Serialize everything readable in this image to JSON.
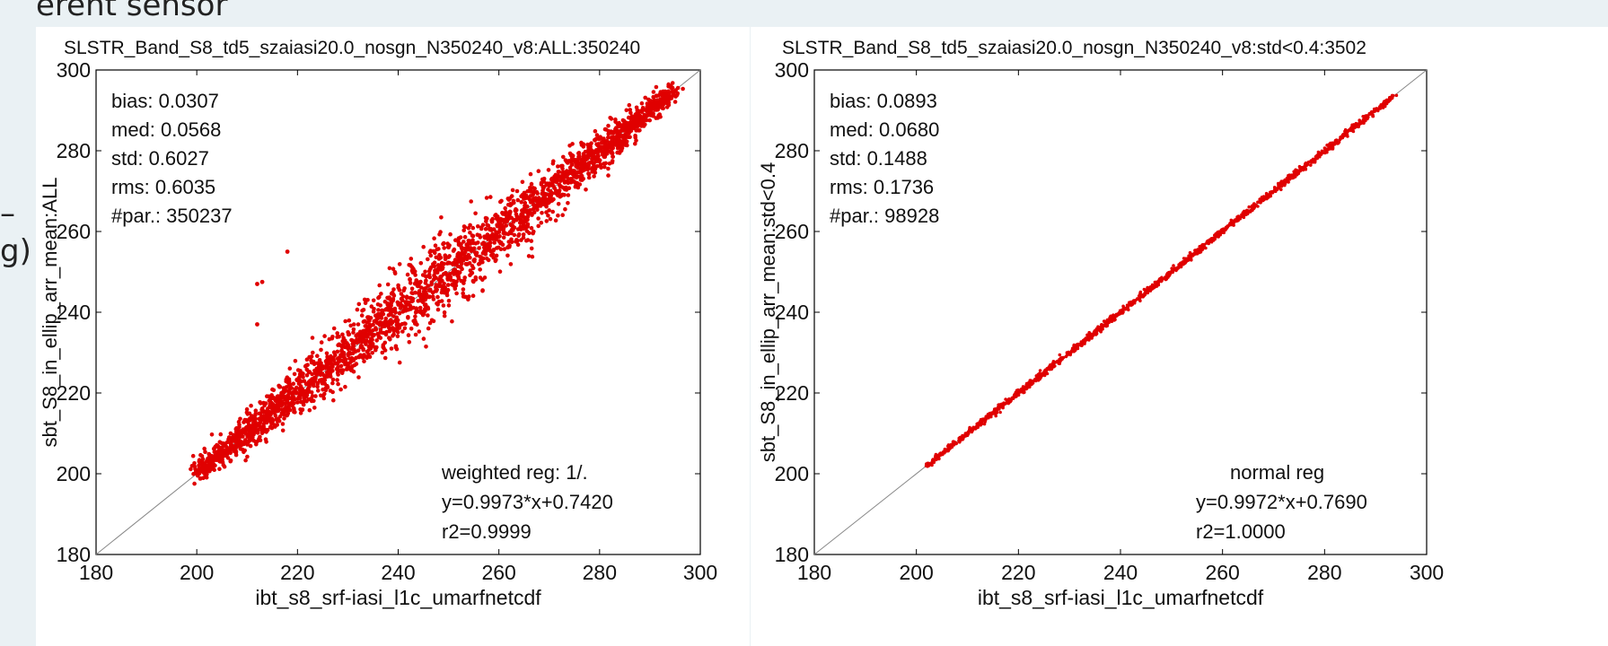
{
  "slide": {
    "title_fragment": "erent sensor",
    "left_fragment_1": "–",
    "left_fragment_2": "g)"
  },
  "chart_data": [
    {
      "type": "scatter",
      "title": "SLSTR_Band_S8_td5_szaiasi20.0_nosgn_N350240_v8:ALL:350240",
      "xlabel": "ibt_s8_srf-iasi_l1c_umarfnetcdf",
      "ylabel": "sbt_S8_in_ellip_arr_mean:ALL",
      "xlim": [
        180,
        300
      ],
      "ylim": [
        180,
        300
      ],
      "xticks": [
        "180",
        "200",
        "220",
        "240",
        "260",
        "280",
        "300"
      ],
      "yticks": [
        "180",
        "200",
        "220",
        "240",
        "260",
        "280",
        "300"
      ],
      "grid": false,
      "point_color": "#e00000",
      "reference_line": "y = x",
      "data_range_x": [
        200,
        295
      ],
      "spread_std": 0.6027,
      "outliers": [
        [
          212,
          247
        ],
        [
          213,
          247.5
        ],
        [
          212,
          237
        ],
        [
          218,
          255
        ]
      ],
      "stats": [
        "bias: 0.0307",
        "med: 0.0568",
        "std: 0.6027",
        "rms: 0.6035",
        "#par.: 350237"
      ],
      "regression": [
        "weighted reg: 1/.",
        "y=0.9973*x+0.7420",
        "r2=0.9999"
      ]
    },
    {
      "type": "scatter",
      "title": "SLSTR_Band_S8_td5_szaiasi20.0_nosgn_N350240_v8:std<0.4:3502",
      "xlabel": "ibt_s8_srf-iasi_l1c_umarfnetcdf",
      "ylabel": "sbt_S8_in_ellip_arr_mean:std<0.4",
      "xlim": [
        180,
        300
      ],
      "ylim": [
        180,
        300
      ],
      "xticks": [
        "180",
        "200",
        "220",
        "240",
        "260",
        "280",
        "300"
      ],
      "yticks": [
        "180",
        "200",
        "220",
        "240",
        "260",
        "280",
        "300"
      ],
      "grid": false,
      "point_color": "#e00000",
      "reference_line": "y = x",
      "data_range_x": [
        202,
        294
      ],
      "spread_std": 0.1488,
      "outliers": [],
      "stats": [
        "bias: 0.0893",
        "med: 0.0680",
        "std: 0.1488",
        "rms: 0.1736",
        "#par.: 98928"
      ],
      "regression": [
        "normal reg",
        "y=0.9972*x+0.7690",
        "r2=1.0000"
      ]
    }
  ]
}
